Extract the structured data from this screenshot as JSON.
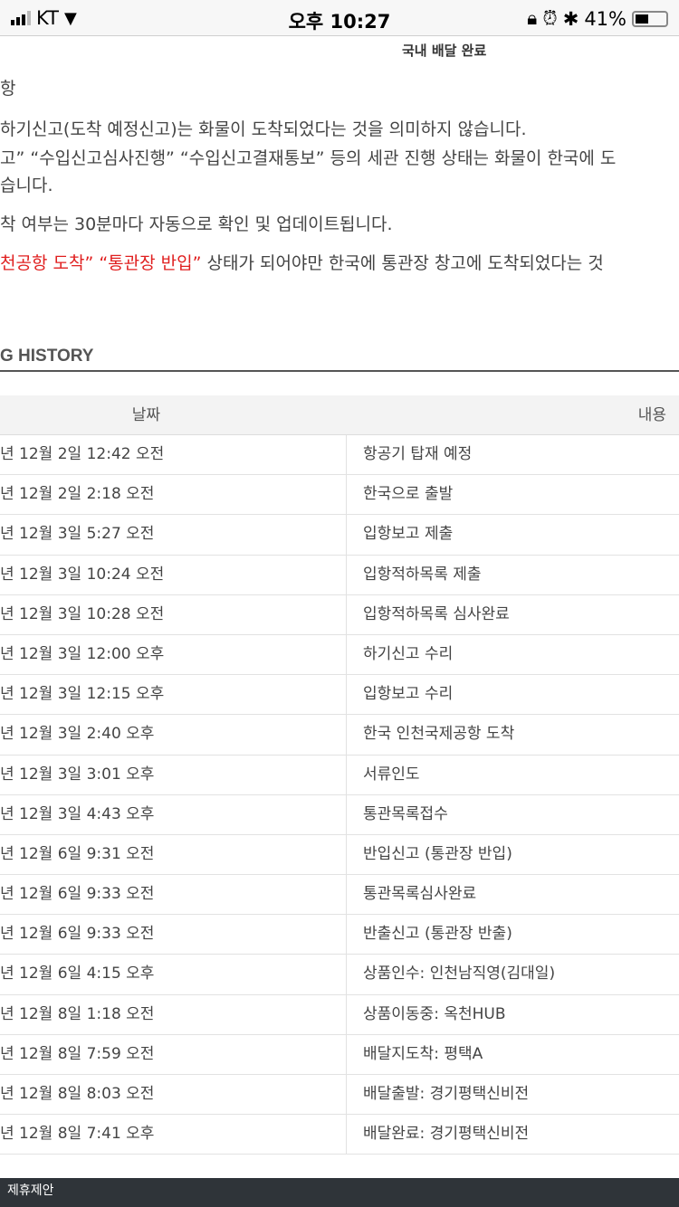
{
  "status_bar": {
    "carrier": "KT",
    "time": "오후 10:27",
    "battery": "41%"
  },
  "subtitle": "국내 배달 완료",
  "notice": {
    "heading": "항",
    "line1": "하기신고(도착 예정신고)는 화물이 도착되었다는 것을 의미하지 않습니다.",
    "line2": "고” “수입신고심사진행” “수입신고결재통보” 등의 세관 진행 상태는 화물이 한국에 도",
    "line3": "습니다.",
    "line4": "착 여부는 30분마다 자동으로 확인 및 업데이트됩니다.",
    "line5_red": "천공항 도착” “통관장 반입”",
    "line5_rest": " 상태가 되어야만 한국에 통관장 창고에 도착되었다는 것"
  },
  "section_title": "G HISTORY",
  "table": {
    "headers": [
      "날짜",
      "내용"
    ],
    "rows": [
      [
        "년 12월 2일 12:42 오전",
        "항공기 탑재 예정"
      ],
      [
        "년 12월 2일 2:18 오전",
        "한국으로 출발"
      ],
      [
        "년 12월 3일 5:27 오전",
        "입항보고 제출"
      ],
      [
        "년 12월 3일 10:24 오전",
        "입항적하목록 제출"
      ],
      [
        "년 12월 3일 10:28 오전",
        "입항적하목록 심사완료"
      ],
      [
        "년 12월 3일 12:00 오후",
        "하기신고 수리"
      ],
      [
        "년 12월 3일 12:15 오후",
        "입항보고 수리"
      ],
      [
        "년 12월 3일 2:40 오후",
        "한국 인천국제공항 도착"
      ],
      [
        "년 12월 3일 3:01 오후",
        "서류인도"
      ],
      [
        "년 12월 3일 4:43 오후",
        "통관목록접수"
      ],
      [
        "년 12월 6일 9:31 오전",
        "반입신고 (통관장 반입)"
      ],
      [
        "년 12월 6일 9:33 오전",
        "통관목록심사완료"
      ],
      [
        "년 12월 6일 9:33 오전",
        "반출신고 (통관장 반출)"
      ],
      [
        "년 12월 6일 4:15 오후",
        "상품인수: 인천남직영(김대일)"
      ],
      [
        "년 12월 8일 1:18 오전",
        "상품이동중: 옥천HUB"
      ],
      [
        "년 12월 8일 7:59 오전",
        "배달지도착: 평택A"
      ],
      [
        "년 12월 8일 8:03 오전",
        "배달출발: 경기평택신비전"
      ],
      [
        "년 12월 8일 7:41 오후",
        "배달완료: 경기평택신비전"
      ]
    ]
  },
  "footer": {
    "link": "제휴제안"
  }
}
